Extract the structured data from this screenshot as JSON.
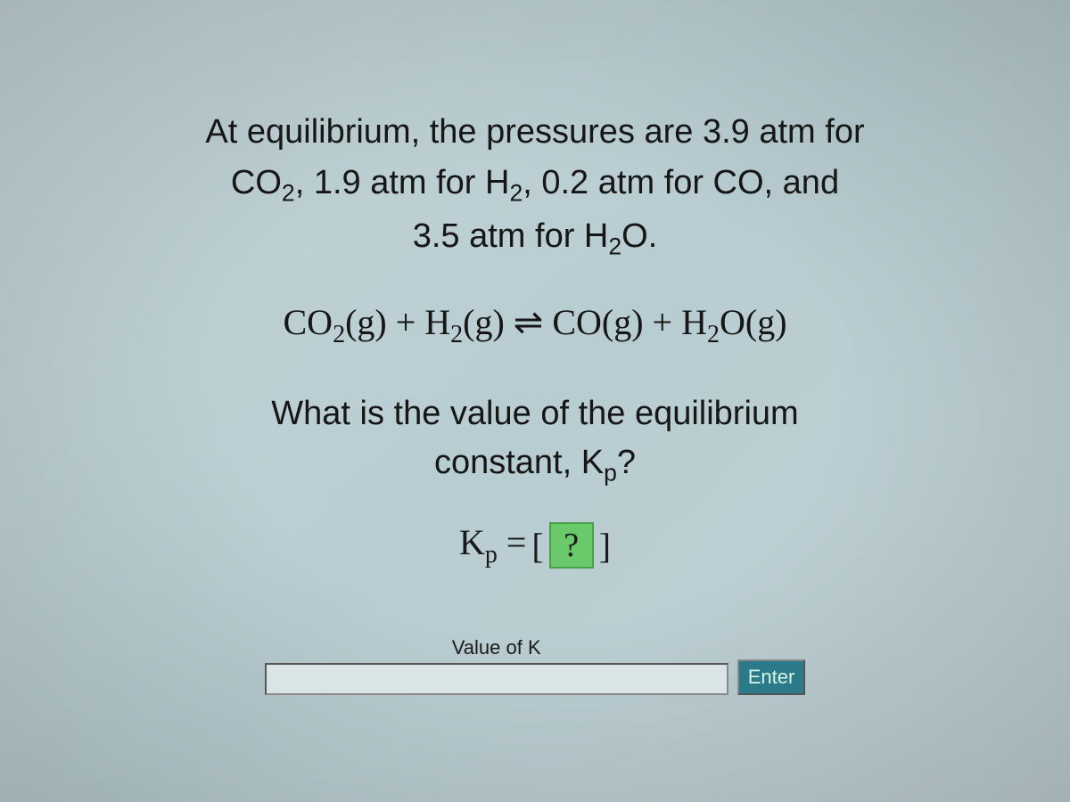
{
  "problem": {
    "intro_line1": "At equilibrium, the pressures are 3.9 atm for",
    "intro_line2_pre": "CO",
    "intro_line2_sub1": "2",
    "intro_line2_mid1": ", 1.9 atm for H",
    "intro_line2_sub2": "2",
    "intro_line2_mid2": ", 0.2 atm for CO, and",
    "intro_line3_pre": "3.5 atm for H",
    "intro_line3_sub": "2",
    "intro_line3_post": "O."
  },
  "equation": {
    "r1": "CO",
    "r1_sub": "2",
    "r1_state": "(g)",
    "plus1": " + ",
    "r2": "H",
    "r2_sub": "2",
    "r2_state": "(g)",
    "arrow": " ⇌ ",
    "p1": "CO(g)",
    "plus2": " + ",
    "p2": "H",
    "p2_sub": "2",
    "p2_post": "O(g)"
  },
  "question": {
    "line1": "What is the value of the equilibrium",
    "line2_pre": "constant, K",
    "line2_sub": "p",
    "line2_post": "?"
  },
  "kp": {
    "label_pre": "K",
    "label_sub": "p",
    "equals": " = ",
    "box": "?"
  },
  "input": {
    "label": "Value of K",
    "value": "",
    "button": "Enter"
  },
  "colors": {
    "answer_box_bg": "#6ac96a",
    "enter_bg": "#2a7a8a"
  }
}
